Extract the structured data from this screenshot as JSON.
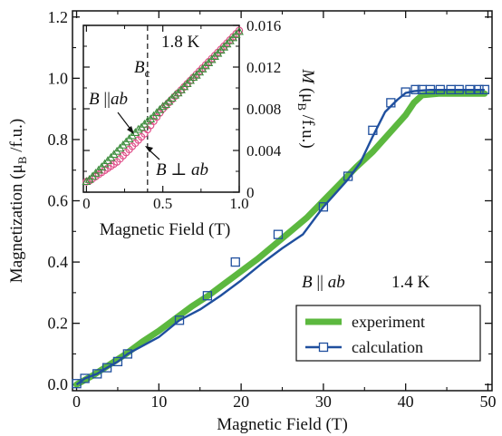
{
  "chart_data": [
    {
      "type": "line",
      "xlabel": "Magnetic Field (T)",
      "ylabel_main": "Magnetization",
      "ylabel_sub": "B",
      "ylabel_unit": "/f.u.)",
      "xlim": [
        -0.5,
        50.5
      ],
      "ylim": [
        -0.02,
        1.22
      ],
      "xticks": [
        0,
        10,
        20,
        30,
        40,
        50
      ],
      "xtick_labels": [
        "0",
        "10",
        "20",
        "30",
        "40",
        "50"
      ],
      "yticks": [
        0.0,
        0.2,
        0.4,
        0.6,
        0.8,
        1.0,
        1.2
      ],
      "ytick_labels": [
        "0.0",
        "0.2",
        "0.4",
        "0.6",
        "0.8",
        "1.0",
        "1.2"
      ],
      "annotation": {
        "field": "B",
        "symbol": "||",
        "direction": "ab",
        "temperature": "1.4 K"
      },
      "legend_position": "lower-right",
      "series": [
        {
          "name": "experiment",
          "style": "thick-line",
          "color": "#5cb83f",
          "x": [
            0,
            2,
            4,
            6,
            8,
            10,
            12,
            14,
            16,
            18,
            20,
            22,
            24,
            26,
            28,
            30,
            32,
            34,
            36,
            38,
            40,
            41,
            42,
            44,
            46,
            48,
            49.6
          ],
          "y": [
            0.0,
            0.03,
            0.065,
            0.1,
            0.14,
            0.175,
            0.215,
            0.255,
            0.29,
            0.33,
            0.37,
            0.41,
            0.455,
            0.5,
            0.545,
            0.6,
            0.655,
            0.71,
            0.76,
            0.82,
            0.88,
            0.92,
            0.945,
            0.95,
            0.95,
            0.95,
            0.95
          ]
        },
        {
          "name": "calculation",
          "style": "line-square-markers",
          "color": "#1f4f9e",
          "x": [
            0,
            1,
            2.5,
            3.7,
            5,
            6.2,
            10,
            12.5,
            15,
            17.5,
            20,
            22.5,
            25,
            27.5,
            30,
            31.5,
            33,
            34.5,
            36,
            37.5,
            39,
            40,
            41,
            42,
            43,
            44,
            45,
            46,
            47,
            48,
            49,
            49.6
          ],
          "y": [
            0.0,
            0.02,
            0.035,
            0.055,
            0.075,
            0.1,
            0.155,
            0.21,
            0.245,
            0.29,
            0.34,
            0.395,
            0.445,
            0.49,
            0.58,
            0.625,
            0.67,
            0.725,
            0.81,
            0.89,
            0.93,
            0.952,
            0.958,
            0.96,
            0.962,
            0.962,
            0.962,
            0.962,
            0.962,
            0.962,
            0.962,
            0.962
          ],
          "marker_x": [
            0,
            1,
            2.5,
            3.7,
            5,
            6.2,
            12.5,
            15.9,
            19.3,
            24.5,
            30,
            33,
            36,
            38.2,
            40,
            41.2,
            42,
            43,
            44.2,
            45.5,
            46.5,
            47.8,
            48.9,
            49.6
          ],
          "marker_y": [
            0.003,
            0.02,
            0.035,
            0.055,
            0.075,
            0.1,
            0.21,
            0.29,
            0.4,
            0.49,
            0.58,
            0.68,
            0.83,
            0.92,
            0.955,
            0.963,
            0.963,
            0.963,
            0.963,
            0.963,
            0.963,
            0.963,
            0.963,
            0.963
          ]
        }
      ]
    },
    {
      "type": "scatter",
      "inset": true,
      "xlabel": "Magnetic Field (T)",
      "ylabel_main": "M",
      "ylabel_sub": "B",
      "ylabel_unit": "/f.u.)",
      "xlim": [
        -0.02,
        1.0
      ],
      "ylim": [
        0,
        0.016
      ],
      "xticks": [
        0,
        0.5,
        1.0
      ],
      "xtick_labels": [
        "0",
        "0.5",
        "1.0"
      ],
      "yticks": [
        0,
        0.004,
        0.008,
        0.012,
        0.016
      ],
      "ytick_labels": [
        "0",
        "0.004",
        "0.008",
        "0.012",
        "0.016"
      ],
      "temperature_label": "1.8 K",
      "critical_field": {
        "x": 0.4,
        "label": "B",
        "subscript": "c"
      },
      "annotations": [
        {
          "label": "B",
          "symbol": "||",
          "direction": "ab",
          "target_series": 0
        },
        {
          "label": "B",
          "symbol": "⊥",
          "direction": "ab",
          "target_series": 1
        }
      ],
      "series": [
        {
          "name": "B || ab",
          "marker": "triangle",
          "color": "#3e8e3e",
          "x": [
            0.0,
            0.02,
            0.04,
            0.06,
            0.08,
            0.1,
            0.12,
            0.14,
            0.16,
            0.18,
            0.2,
            0.22,
            0.24,
            0.26,
            0.28,
            0.3,
            0.32,
            0.34,
            0.36,
            0.38,
            0.4,
            0.42,
            0.44,
            0.46,
            0.48,
            0.5,
            0.52,
            0.54,
            0.56,
            0.58,
            0.6,
            0.62,
            0.64,
            0.66,
            0.68,
            0.7,
            0.72,
            0.74,
            0.76,
            0.78,
            0.8,
            0.82,
            0.84,
            0.86,
            0.88,
            0.9,
            0.92,
            0.94,
            0.96,
            0.98,
            1.0
          ],
          "y": [
            0.001,
            0.0012,
            0.0015,
            0.0018,
            0.0021,
            0.0024,
            0.0027,
            0.003,
            0.0033,
            0.0036,
            0.0039,
            0.0042,
            0.0045,
            0.0048,
            0.0051,
            0.0054,
            0.0057,
            0.006,
            0.0062,
            0.0065,
            0.0068,
            0.007,
            0.0073,
            0.0076,
            0.0079,
            0.0082,
            0.0084,
            0.0087,
            0.009,
            0.0093,
            0.0095,
            0.0098,
            0.0101,
            0.0104,
            0.0107,
            0.011,
            0.0112,
            0.0115,
            0.0118,
            0.0121,
            0.0124,
            0.0127,
            0.013,
            0.0133,
            0.0136,
            0.0139,
            0.0142,
            0.0145,
            0.0148,
            0.0151,
            0.0154
          ]
        },
        {
          "name": "B ⊥ ab",
          "marker": "circle",
          "color": "#e0508a",
          "x": [
            0.0,
            0.02,
            0.04,
            0.06,
            0.08,
            0.1,
            0.12,
            0.14,
            0.16,
            0.18,
            0.2,
            0.22,
            0.24,
            0.26,
            0.28,
            0.3,
            0.32,
            0.34,
            0.36,
            0.38,
            0.4,
            0.42,
            0.44,
            0.46,
            0.48,
            0.5,
            0.52,
            0.54,
            0.56,
            0.58,
            0.6,
            0.62,
            0.64,
            0.66,
            0.68,
            0.7,
            0.72,
            0.74,
            0.76,
            0.78,
            0.8,
            0.82,
            0.84,
            0.86,
            0.88,
            0.9,
            0.92,
            0.94,
            0.96,
            0.98,
            1.0
          ],
          "y": [
            0.001,
            0.0011,
            0.0013,
            0.0015,
            0.0017,
            0.0019,
            0.0021,
            0.0023,
            0.0025,
            0.0027,
            0.0029,
            0.0032,
            0.0035,
            0.0038,
            0.0041,
            0.0044,
            0.0047,
            0.005,
            0.0053,
            0.0056,
            0.006,
            0.0064,
            0.0068,
            0.0072,
            0.0076,
            0.008,
            0.0083,
            0.0086,
            0.0089,
            0.0092,
            0.0095,
            0.0098,
            0.0101,
            0.0104,
            0.0107,
            0.011,
            0.0113,
            0.0116,
            0.0119,
            0.0122,
            0.0125,
            0.0128,
            0.0131,
            0.0134,
            0.0137,
            0.014,
            0.0143,
            0.0146,
            0.0149,
            0.0152,
            0.0155
          ]
        }
      ]
    }
  ]
}
